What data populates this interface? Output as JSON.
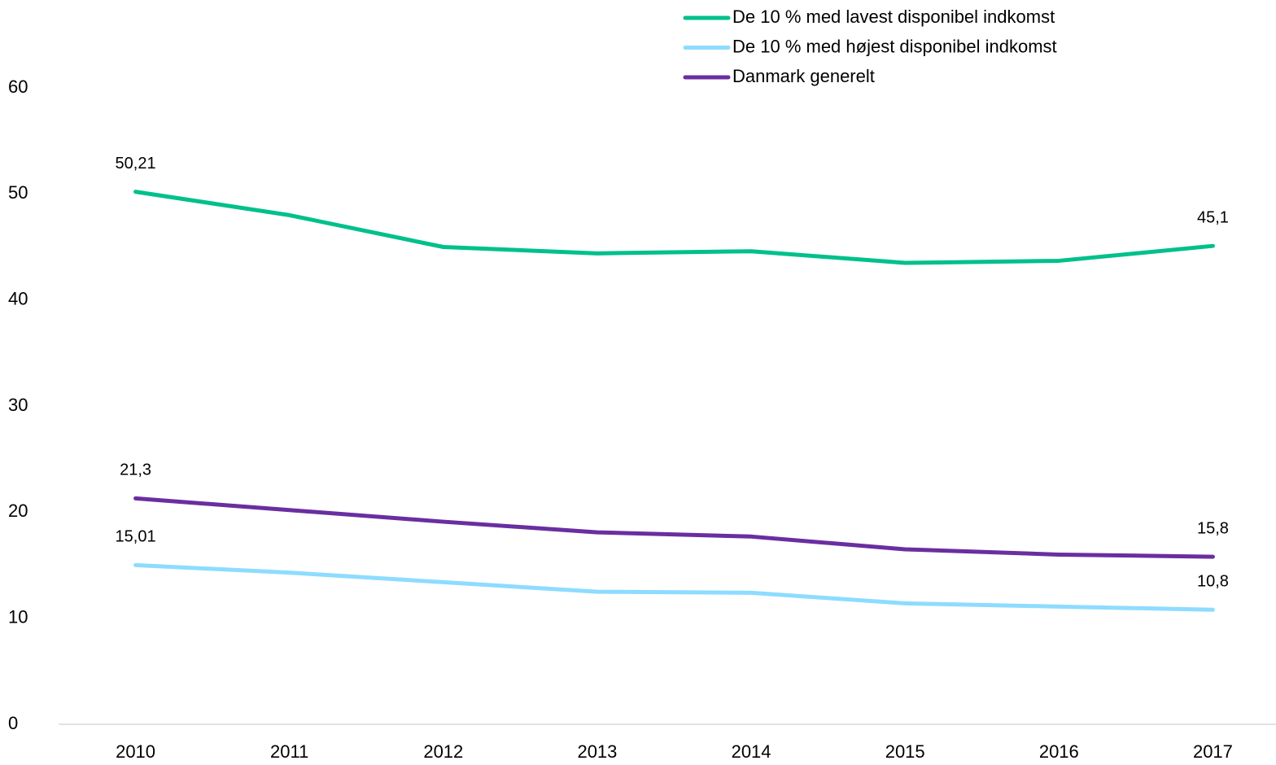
{
  "chart_data": {
    "type": "line",
    "categories": [
      "2010",
      "2011",
      "2012",
      "2013",
      "2014",
      "2015",
      "2016",
      "2017"
    ],
    "series": [
      {
        "name": "De 10 % med lavest disponibel indkomst",
        "color": "#00c08b",
        "values": [
          50.21,
          48.0,
          45.0,
          44.4,
          44.6,
          43.5,
          43.7,
          45.1
        ],
        "value_labels": [
          "50,21",
          null,
          null,
          null,
          null,
          null,
          null,
          "45,1"
        ]
      },
      {
        "name": "De 10 % med højest disponibel indkomst",
        "color": "#8ddcff",
        "values": [
          15.01,
          14.3,
          13.4,
          12.5,
          12.4,
          11.4,
          11.1,
          10.8
        ],
        "value_labels": [
          "15,01",
          null,
          null,
          null,
          null,
          null,
          null,
          "10,8"
        ]
      },
      {
        "name": "Danmark generelt",
        "color": "#6a2ea0",
        "values": [
          21.3,
          20.2,
          19.1,
          18.1,
          17.7,
          16.5,
          16.0,
          15.8
        ],
        "value_labels": [
          "21,3",
          null,
          null,
          null,
          null,
          null,
          null,
          "15,8"
        ]
      }
    ],
    "ylim": [
      0,
      60
    ],
    "yticks": [
      0,
      10,
      20,
      30,
      40,
      50,
      60
    ],
    "grid": false,
    "legend": "top"
  }
}
